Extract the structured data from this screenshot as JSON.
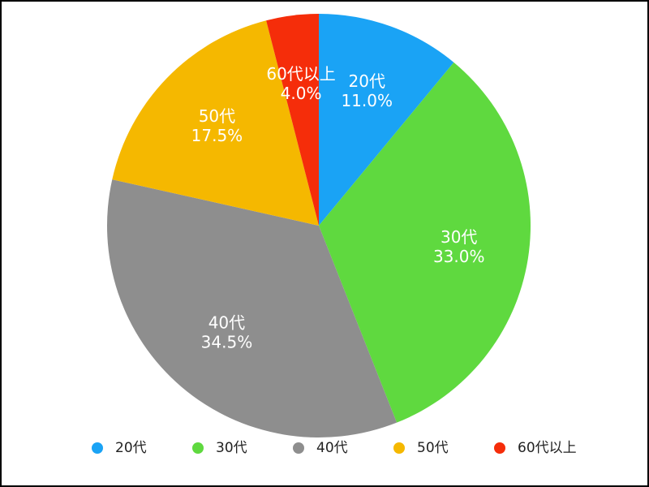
{
  "chart_data": {
    "type": "pie",
    "categories": [
      "20代",
      "30代",
      "40代",
      "50代",
      "60代以上"
    ],
    "values": [
      11.0,
      33.0,
      34.5,
      17.5,
      4.0
    ],
    "value_labels": [
      "11.0%",
      "33.0%",
      "34.5%",
      "17.5%",
      "4.0%"
    ],
    "colors": [
      "#1aa3f5",
      "#5fd93f",
      "#8e8e8e",
      "#f5b800",
      "#f52d0a"
    ],
    "legend": "bottom"
  }
}
